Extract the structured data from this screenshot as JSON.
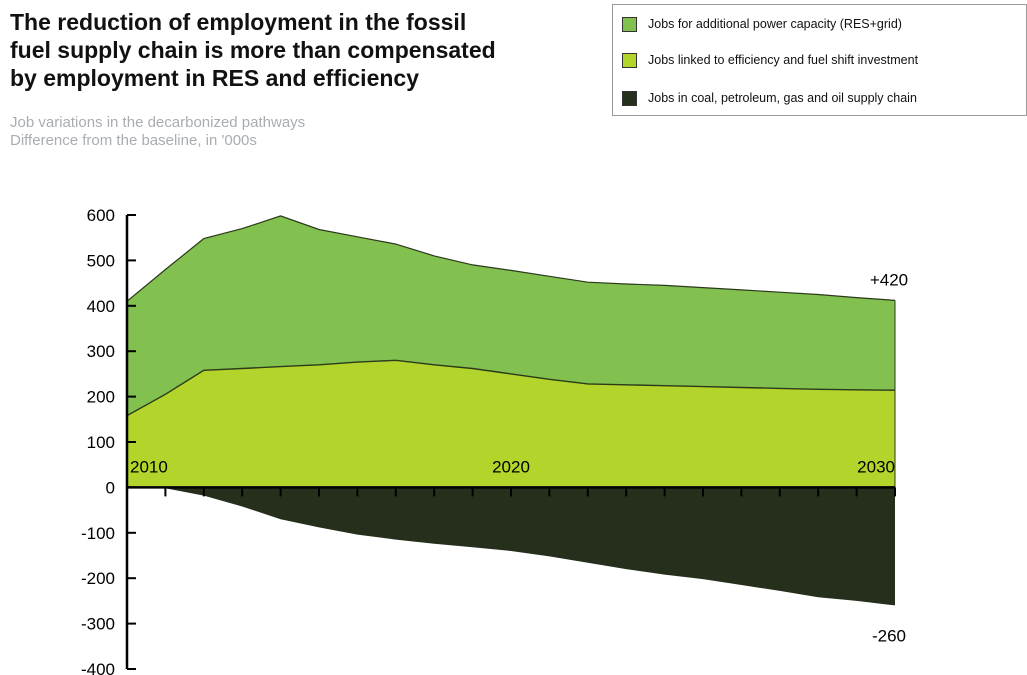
{
  "title_lines": [
    "The reduction of employment in the fossil",
    "fuel supply chain is more than compensated",
    "by employment in RES and efficiency"
  ],
  "subtitle_lines": [
    "Job variations in the decarbonized pathways",
    "Difference from the baseline, in '000s"
  ],
  "colors": {
    "power_capacity": "#82c050",
    "efficiency": "#b3d42b",
    "supply_chain": "#262e1c"
  },
  "chart_data": {
    "type": "area",
    "x": [
      2010,
      2011,
      2012,
      2013,
      2014,
      2015,
      2016,
      2017,
      2018,
      2019,
      2020,
      2021,
      2022,
      2023,
      2024,
      2025,
      2026,
      2027,
      2028,
      2029,
      2030
    ],
    "x_labels": [
      "2010",
      "2020",
      "2030"
    ],
    "ylim": [
      -400,
      600
    ],
    "y_ticks": [
      600,
      500,
      400,
      300,
      200,
      100,
      0,
      -100,
      -200,
      -300,
      -400
    ],
    "legend_position": "top-right",
    "series": [
      {
        "name": "Jobs for additional power capacity (RES+grid)",
        "color_key": "power_capacity",
        "stacked_top": [
          410,
          480,
          548,
          570,
          598,
          568,
          552,
          536,
          510,
          490,
          478,
          465,
          452,
          448,
          445,
          440,
          435,
          430,
          425,
          418,
          412
        ]
      },
      {
        "name": "Jobs linked to efficiency and fuel shift investment",
        "color_key": "efficiency",
        "stacked_top": [
          158,
          205,
          258,
          262,
          266,
          270,
          276,
          280,
          270,
          262,
          250,
          238,
          228,
          226,
          224,
          222,
          220,
          218,
          216,
          215,
          214
        ]
      },
      {
        "name": "Jobs in coal, petroleum, gas and oil supply chain",
        "color_key": "supply_chain",
        "values": [
          0,
          -2,
          -18,
          -42,
          -70,
          -88,
          -104,
          -115,
          -124,
          -132,
          -140,
          -152,
          -166,
          -180,
          -192,
          -202,
          -215,
          -228,
          -242,
          -250,
          -260
        ]
      }
    ],
    "annotations": [
      "+420",
      "-260"
    ]
  }
}
